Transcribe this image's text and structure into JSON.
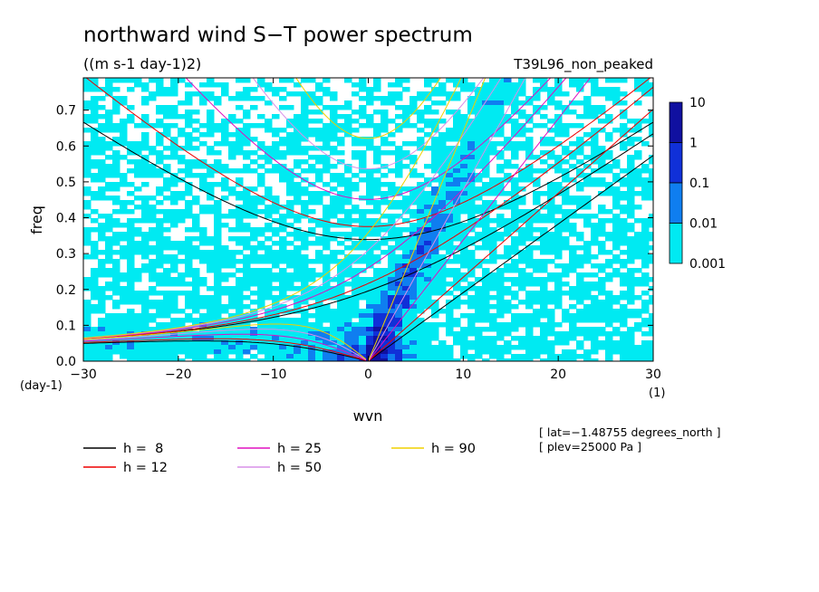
{
  "chart_data": {
    "type": "heatmap",
    "title": "northward wind S−T power spectrum",
    "subtitle": "((m s-1 day-1)2)",
    "experiment": "T39L96_non_peaked",
    "xlabel": "wvn",
    "ylabel": "freq",
    "xunit": "(1)",
    "yunit": "(day-1)",
    "xlim": [
      -30,
      30
    ],
    "ylim": [
      0,
      0.79
    ],
    "xticks": [
      "−30",
      "−20",
      "−10",
      "0",
      "10",
      "20",
      "30"
    ],
    "xtick_values": [
      -30,
      -20,
      -10,
      0,
      10,
      20,
      30
    ],
    "yticks": [
      "0.0",
      "0.1",
      "0.2",
      "0.3",
      "0.4",
      "0.5",
      "0.6",
      "0.7"
    ],
    "ytick_values": [
      0,
      0.1,
      0.2,
      0.3,
      0.4,
      0.5,
      0.6,
      0.7
    ],
    "colorbar": {
      "labels": [
        "10",
        "1",
        "0.1",
        "0.01",
        "0.001"
      ],
      "levels": [
        0.001,
        0.01,
        0.1,
        1,
        10
      ],
      "colors": [
        "#00eaf2",
        "#0f7ef0",
        "#1030d8",
        "#1010a0"
      ]
    },
    "dispersion_curves": [
      {
        "label": "h =  8",
        "h": 8,
        "color": "#000000"
      },
      {
        "label": "h = 12",
        "h": 12,
        "color": "#ee0000"
      },
      {
        "label": "h = 25",
        "h": 25,
        "color": "#e010c0"
      },
      {
        "label": "h = 50",
        "h": 50,
        "color": "#d890e8"
      },
      {
        "label": "h = 90",
        "h": 90,
        "color": "#f0d000"
      }
    ],
    "annotations": [
      "[ lat=−1.48755 degrees_north ]",
      "[ plev=25000 Pa ]"
    ]
  }
}
